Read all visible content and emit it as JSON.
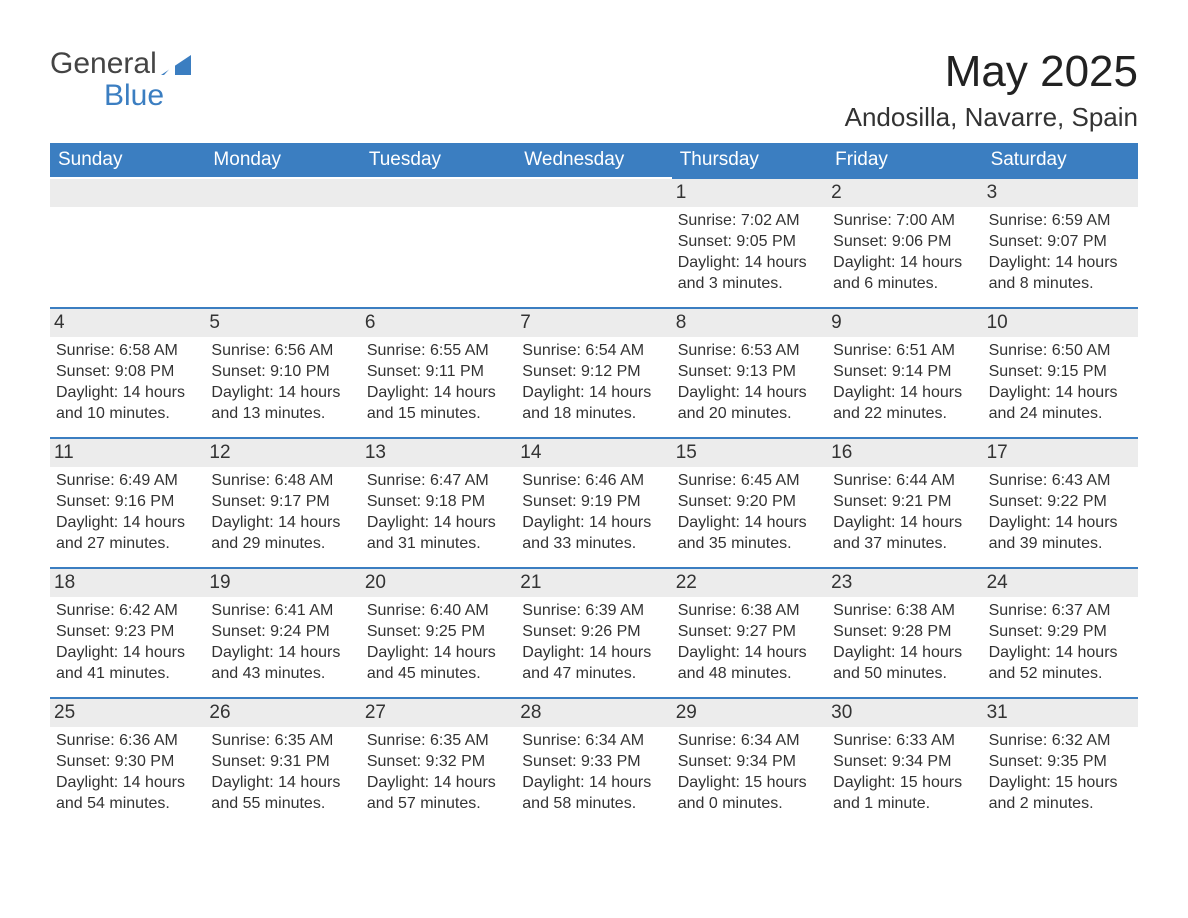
{
  "brand": {
    "line1": "General",
    "line2": "Blue"
  },
  "title": {
    "month": "May 2025",
    "location": "Andosilla, Navarre, Spain"
  },
  "style": {
    "header_bg": "#3b7ec1",
    "header_text": "#ffffff",
    "daynum_bg": "#ececec",
    "cell_border_top": "#3b7ec1",
    "text_color": "#333333",
    "page_bg": "#ffffff",
    "title_fontsize": 44,
    "location_fontsize": 26,
    "weekday_fontsize": 19,
    "daynum_fontsize": 19,
    "detail_fontsize": 16
  },
  "weekdays": [
    "Sunday",
    "Monday",
    "Tuesday",
    "Wednesday",
    "Thursday",
    "Friday",
    "Saturday"
  ],
  "weeks": [
    [
      {
        "empty": true
      },
      {
        "empty": true
      },
      {
        "empty": true
      },
      {
        "empty": true
      },
      {
        "day": "1",
        "sunrise": "Sunrise: 7:02 AM",
        "sunset": "Sunset: 9:05 PM",
        "daylight1": "Daylight: 14 hours",
        "daylight2": "and 3 minutes."
      },
      {
        "day": "2",
        "sunrise": "Sunrise: 7:00 AM",
        "sunset": "Sunset: 9:06 PM",
        "daylight1": "Daylight: 14 hours",
        "daylight2": "and 6 minutes."
      },
      {
        "day": "3",
        "sunrise": "Sunrise: 6:59 AM",
        "sunset": "Sunset: 9:07 PM",
        "daylight1": "Daylight: 14 hours",
        "daylight2": "and 8 minutes."
      }
    ],
    [
      {
        "day": "4",
        "sunrise": "Sunrise: 6:58 AM",
        "sunset": "Sunset: 9:08 PM",
        "daylight1": "Daylight: 14 hours",
        "daylight2": "and 10 minutes."
      },
      {
        "day": "5",
        "sunrise": "Sunrise: 6:56 AM",
        "sunset": "Sunset: 9:10 PM",
        "daylight1": "Daylight: 14 hours",
        "daylight2": "and 13 minutes."
      },
      {
        "day": "6",
        "sunrise": "Sunrise: 6:55 AM",
        "sunset": "Sunset: 9:11 PM",
        "daylight1": "Daylight: 14 hours",
        "daylight2": "and 15 minutes."
      },
      {
        "day": "7",
        "sunrise": "Sunrise: 6:54 AM",
        "sunset": "Sunset: 9:12 PM",
        "daylight1": "Daylight: 14 hours",
        "daylight2": "and 18 minutes."
      },
      {
        "day": "8",
        "sunrise": "Sunrise: 6:53 AM",
        "sunset": "Sunset: 9:13 PM",
        "daylight1": "Daylight: 14 hours",
        "daylight2": "and 20 minutes."
      },
      {
        "day": "9",
        "sunrise": "Sunrise: 6:51 AM",
        "sunset": "Sunset: 9:14 PM",
        "daylight1": "Daylight: 14 hours",
        "daylight2": "and 22 minutes."
      },
      {
        "day": "10",
        "sunrise": "Sunrise: 6:50 AM",
        "sunset": "Sunset: 9:15 PM",
        "daylight1": "Daylight: 14 hours",
        "daylight2": "and 24 minutes."
      }
    ],
    [
      {
        "day": "11",
        "sunrise": "Sunrise: 6:49 AM",
        "sunset": "Sunset: 9:16 PM",
        "daylight1": "Daylight: 14 hours",
        "daylight2": "and 27 minutes."
      },
      {
        "day": "12",
        "sunrise": "Sunrise: 6:48 AM",
        "sunset": "Sunset: 9:17 PM",
        "daylight1": "Daylight: 14 hours",
        "daylight2": "and 29 minutes."
      },
      {
        "day": "13",
        "sunrise": "Sunrise: 6:47 AM",
        "sunset": "Sunset: 9:18 PM",
        "daylight1": "Daylight: 14 hours",
        "daylight2": "and 31 minutes."
      },
      {
        "day": "14",
        "sunrise": "Sunrise: 6:46 AM",
        "sunset": "Sunset: 9:19 PM",
        "daylight1": "Daylight: 14 hours",
        "daylight2": "and 33 minutes."
      },
      {
        "day": "15",
        "sunrise": "Sunrise: 6:45 AM",
        "sunset": "Sunset: 9:20 PM",
        "daylight1": "Daylight: 14 hours",
        "daylight2": "and 35 minutes."
      },
      {
        "day": "16",
        "sunrise": "Sunrise: 6:44 AM",
        "sunset": "Sunset: 9:21 PM",
        "daylight1": "Daylight: 14 hours",
        "daylight2": "and 37 minutes."
      },
      {
        "day": "17",
        "sunrise": "Sunrise: 6:43 AM",
        "sunset": "Sunset: 9:22 PM",
        "daylight1": "Daylight: 14 hours",
        "daylight2": "and 39 minutes."
      }
    ],
    [
      {
        "day": "18",
        "sunrise": "Sunrise: 6:42 AM",
        "sunset": "Sunset: 9:23 PM",
        "daylight1": "Daylight: 14 hours",
        "daylight2": "and 41 minutes."
      },
      {
        "day": "19",
        "sunrise": "Sunrise: 6:41 AM",
        "sunset": "Sunset: 9:24 PM",
        "daylight1": "Daylight: 14 hours",
        "daylight2": "and 43 minutes."
      },
      {
        "day": "20",
        "sunrise": "Sunrise: 6:40 AM",
        "sunset": "Sunset: 9:25 PM",
        "daylight1": "Daylight: 14 hours",
        "daylight2": "and 45 minutes."
      },
      {
        "day": "21",
        "sunrise": "Sunrise: 6:39 AM",
        "sunset": "Sunset: 9:26 PM",
        "daylight1": "Daylight: 14 hours",
        "daylight2": "and 47 minutes."
      },
      {
        "day": "22",
        "sunrise": "Sunrise: 6:38 AM",
        "sunset": "Sunset: 9:27 PM",
        "daylight1": "Daylight: 14 hours",
        "daylight2": "and 48 minutes."
      },
      {
        "day": "23",
        "sunrise": "Sunrise: 6:38 AM",
        "sunset": "Sunset: 9:28 PM",
        "daylight1": "Daylight: 14 hours",
        "daylight2": "and 50 minutes."
      },
      {
        "day": "24",
        "sunrise": "Sunrise: 6:37 AM",
        "sunset": "Sunset: 9:29 PM",
        "daylight1": "Daylight: 14 hours",
        "daylight2": "and 52 minutes."
      }
    ],
    [
      {
        "day": "25",
        "sunrise": "Sunrise: 6:36 AM",
        "sunset": "Sunset: 9:30 PM",
        "daylight1": "Daylight: 14 hours",
        "daylight2": "and 54 minutes."
      },
      {
        "day": "26",
        "sunrise": "Sunrise: 6:35 AM",
        "sunset": "Sunset: 9:31 PM",
        "daylight1": "Daylight: 14 hours",
        "daylight2": "and 55 minutes."
      },
      {
        "day": "27",
        "sunrise": "Sunrise: 6:35 AM",
        "sunset": "Sunset: 9:32 PM",
        "daylight1": "Daylight: 14 hours",
        "daylight2": "and 57 minutes."
      },
      {
        "day": "28",
        "sunrise": "Sunrise: 6:34 AM",
        "sunset": "Sunset: 9:33 PM",
        "daylight1": "Daylight: 14 hours",
        "daylight2": "and 58 minutes."
      },
      {
        "day": "29",
        "sunrise": "Sunrise: 6:34 AM",
        "sunset": "Sunset: 9:34 PM",
        "daylight1": "Daylight: 15 hours",
        "daylight2": "and 0 minutes."
      },
      {
        "day": "30",
        "sunrise": "Sunrise: 6:33 AM",
        "sunset": "Sunset: 9:34 PM",
        "daylight1": "Daylight: 15 hours",
        "daylight2": "and 1 minute."
      },
      {
        "day": "31",
        "sunrise": "Sunrise: 6:32 AM",
        "sunset": "Sunset: 9:35 PM",
        "daylight1": "Daylight: 15 hours",
        "daylight2": "and 2 minutes."
      }
    ]
  ]
}
